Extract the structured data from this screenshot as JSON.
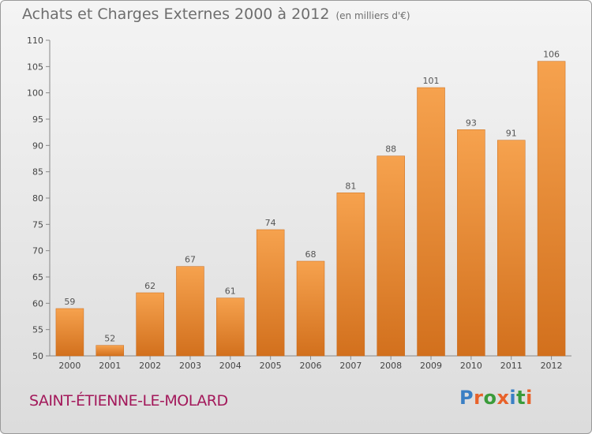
{
  "header": {
    "title": "Achats et Charges Externes 2000 à 2012",
    "unit": "(en milliers d'€)"
  },
  "footer": {
    "place": "SAINT-ÉTIENNE-LE-MOLARD",
    "logo": "Proxiti"
  },
  "colors": {
    "bar_light": "#f6a24e",
    "bar_dark": "#d2701d",
    "place": "#a3195b",
    "logo_letters": [
      "#3a7fc4",
      "#e8622a",
      "#3a9b3a",
      "#e8622a",
      "#3a7fc4",
      "#3a9b3a",
      "#e8622a"
    ]
  },
  "chart_data": {
    "type": "bar",
    "title": "Achats et Charges Externes 2000 à 2012",
    "subtitle": "(en milliers d'€)",
    "xlabel": "",
    "ylabel": "",
    "categories": [
      "2000",
      "2001",
      "2002",
      "2003",
      "2004",
      "2005",
      "2006",
      "2007",
      "2008",
      "2009",
      "2010",
      "2011",
      "2012"
    ],
    "values": [
      59,
      52,
      62,
      67,
      61,
      74,
      68,
      81,
      88,
      101,
      93,
      91,
      106
    ],
    "ylim": [
      50,
      110
    ],
    "yticks": [
      50,
      55,
      60,
      65,
      70,
      75,
      80,
      85,
      90,
      95,
      100,
      105,
      110
    ],
    "grid": false,
    "data_labels": true
  }
}
